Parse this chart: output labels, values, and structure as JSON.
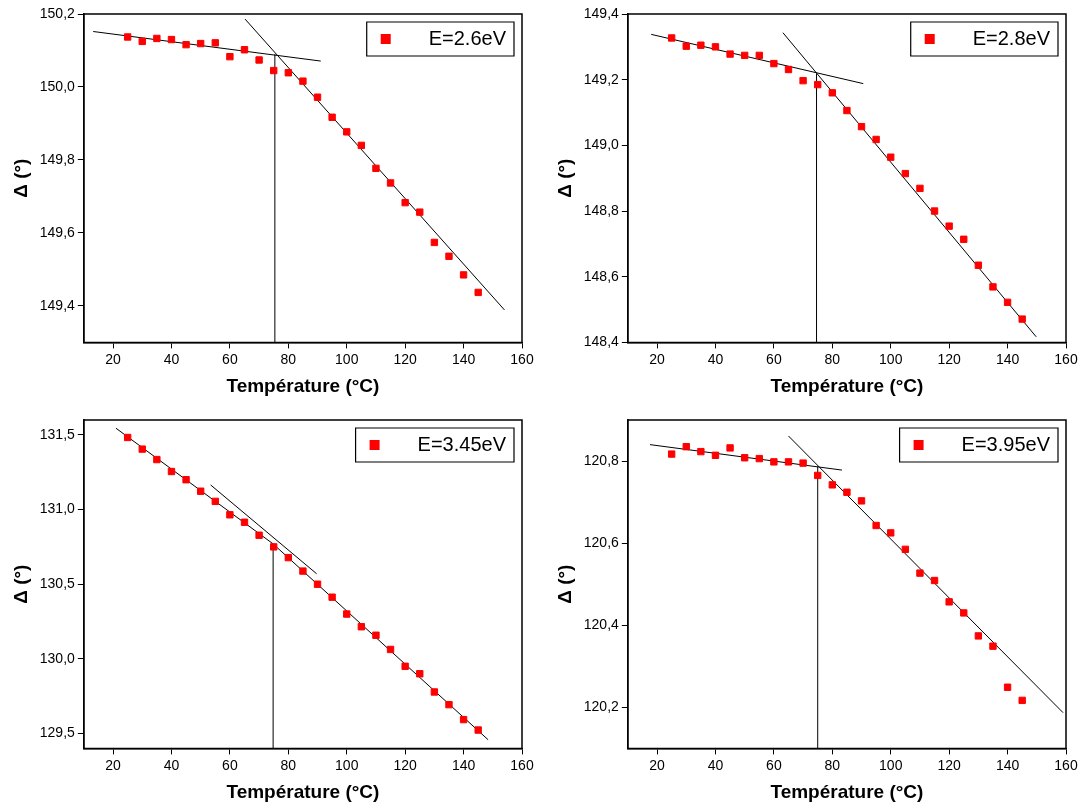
{
  "chart_data": [
    {
      "type": "scatter",
      "xlabel": "Température (°C)",
      "ylabel": "Δ (°)",
      "xlim": [
        10,
        160
      ],
      "ylim": [
        149.3,
        150.2
      ],
      "xticks": [
        20,
        40,
        60,
        80,
        100,
        120,
        140,
        160
      ],
      "yticks": [
        {
          "value": 149.4,
          "label": "149,4"
        },
        {
          "value": 149.6,
          "label": "149,6"
        },
        {
          "value": 149.8,
          "label": "149,8"
        },
        {
          "value": 150.0,
          "label": "150,0"
        },
        {
          "value": 150.2,
          "label": "150,2"
        }
      ],
      "grid": false,
      "legend": "top right",
      "marker": "square",
      "x": [
        25,
        30,
        35,
        40,
        45,
        50,
        55,
        60,
        65,
        70,
        75,
        80,
        85,
        90,
        95,
        100,
        105,
        110,
        115,
        120,
        125,
        130,
        135,
        140,
        145
      ],
      "series": [
        {
          "name": "E=2.6eV",
          "color": "#ff0000",
          "values": [
            150.137,
            150.125,
            150.133,
            150.13,
            150.116,
            150.119,
            150.121,
            150.083,
            150.102,
            150.074,
            150.045,
            150.039,
            150.016,
            149.972,
            149.917,
            149.877,
            149.84,
            149.777,
            149.737,
            149.683,
            149.657,
            149.574,
            149.536,
            149.485,
            149.437
          ]
        },
        {
          "type": "line",
          "color": "#000000",
          "marker": "none",
          "x": [
            13.2,
            91.1
          ],
          "values": [
            150.152,
            150.071
          ]
        },
        {
          "type": "line",
          "color": "#000000",
          "marker": "none",
          "x": [
            65.2,
            154
          ],
          "values": [
            150.186,
            149.389
          ]
        },
        {
          "type": "line",
          "color": "#000000",
          "marker": "none",
          "x": [
            75.4,
            75.4
          ],
          "values": [
            149.3,
            150.09
          ]
        }
      ]
    },
    {
      "type": "scatter",
      "xlabel": "Température (°C)",
      "ylabel": "Δ (°)",
      "xlim": [
        10,
        160
      ],
      "ylim": [
        148.4,
        149.4
      ],
      "xticks": [
        20,
        40,
        60,
        80,
        100,
        120,
        140,
        160
      ],
      "yticks": [
        {
          "value": 148.4,
          "label": "148,4"
        },
        {
          "value": 148.6,
          "label": "148,6"
        },
        {
          "value": 148.8,
          "label": "148,8"
        },
        {
          "value": 149.0,
          "label": "149,0"
        },
        {
          "value": 149.2,
          "label": "149,2"
        },
        {
          "value": 149.4,
          "label": "149,4"
        }
      ],
      "grid": false,
      "legend": "top right",
      "marker": "square",
      "x": [
        25,
        30,
        35,
        40,
        45,
        50,
        55,
        60,
        65,
        70,
        75,
        80,
        85,
        90,
        95,
        100,
        105,
        110,
        115,
        120,
        125,
        130,
        135,
        140,
        145
      ],
      "series": [
        {
          "name": "E=2.8eV",
          "color": "#ff0000",
          "values": [
            149.327,
            149.302,
            149.305,
            149.3,
            149.278,
            149.274,
            149.274,
            149.249,
            149.231,
            149.197,
            149.185,
            149.16,
            149.106,
            149.057,
            149.018,
            148.964,
            148.914,
            148.869,
            148.8,
            148.754,
            148.714,
            148.635,
            148.569,
            148.522,
            148.471
          ]
        },
        {
          "type": "line",
          "color": "#000000",
          "marker": "none",
          "x": [
            18,
            90.6
          ],
          "values": [
            149.338,
            149.188
          ]
        },
        {
          "type": "line",
          "color": "#000000",
          "marker": "none",
          "x": [
            63.1,
            149.8
          ],
          "values": [
            149.343,
            148.417
          ]
        },
        {
          "type": "line",
          "color": "#000000",
          "marker": "none",
          "x": [
            74.6,
            74.6
          ],
          "values": [
            148.4,
            149.219
          ]
        }
      ]
    },
    {
      "type": "scatter",
      "xlabel": "Température (°C)",
      "ylabel": "Δ (°)",
      "xlim": [
        10,
        160
      ],
      "ylim": [
        129.4,
        131.6
      ],
      "xticks": [
        20,
        40,
        60,
        80,
        100,
        120,
        140,
        160
      ],
      "yticks": [
        {
          "value": 129.5,
          "label": "129,5"
        },
        {
          "value": 130.0,
          "label": "130,0"
        },
        {
          "value": 130.5,
          "label": "130,5"
        },
        {
          "value": 131.0,
          "label": "131,0"
        },
        {
          "value": 131.5,
          "label": "131,5"
        }
      ],
      "grid": false,
      "legend": "top right",
      "marker": "square",
      "x": [
        25,
        30,
        35,
        40,
        45,
        50,
        55,
        60,
        65,
        70,
        75,
        80,
        85,
        90,
        95,
        100,
        105,
        110,
        115,
        120,
        125,
        130,
        135,
        140,
        145
      ],
      "series": [
        {
          "name": "E=3.45eV",
          "color": "#ff0000",
          "values": [
            131.483,
            131.405,
            131.335,
            131.255,
            131.2,
            131.123,
            131.055,
            130.965,
            130.915,
            130.828,
            130.75,
            130.678,
            130.588,
            130.5,
            130.413,
            130.3,
            130.215,
            130.158,
            130.063,
            129.95,
            129.9,
            129.778,
            129.693,
            129.593,
            129.523
          ]
        },
        {
          "type": "line",
          "color": "#000000",
          "marker": "none",
          "x": [
            21,
            74.8,
            148.4
          ],
          "values": [
            131.545,
            130.77,
            129.458
          ]
        },
        {
          "type": "line",
          "color": "#000000",
          "marker": "none",
          "x": [
            53.4,
            89.7
          ],
          "values": [
            131.165,
            130.57
          ]
        },
        {
          "type": "line",
          "color": "#000000",
          "marker": "none",
          "x": [
            74.8,
            74.8
          ],
          "values": [
            129.4,
            130.77
          ]
        }
      ]
    },
    {
      "type": "scatter",
      "xlabel": "Température (°C)",
      "ylabel": "Δ (°)",
      "xlim": [
        10,
        160
      ],
      "ylim": [
        120.1,
        120.9
      ],
      "xticks": [
        20,
        40,
        60,
        80,
        100,
        120,
        140,
        160
      ],
      "yticks": [
        {
          "value": 120.2,
          "label": "120,2"
        },
        {
          "value": 120.4,
          "label": "120,4"
        },
        {
          "value": 120.6,
          "label": "120,6"
        },
        {
          "value": 120.8,
          "label": "120,8"
        }
      ],
      "grid": false,
      "legend": "top right",
      "marker": "square",
      "x": [
        25,
        30,
        35,
        40,
        45,
        50,
        55,
        60,
        65,
        70,
        75,
        80,
        85,
        90,
        95,
        100,
        105,
        110,
        115,
        120,
        125,
        130,
        135,
        140,
        145
      ],
      "series": [
        {
          "name": "E=3.95eV",
          "color": "#ff0000",
          "values": [
            120.817,
            120.835,
            120.823,
            120.814,
            120.832,
            120.808,
            120.806,
            120.798,
            120.798,
            120.795,
            120.765,
            120.742,
            120.724,
            120.703,
            120.643,
            120.625,
            120.585,
            120.527,
            120.509,
            120.457,
            120.43,
            120.374,
            120.349,
            120.249,
            120.217
          ]
        },
        {
          "type": "line",
          "color": "#000000",
          "marker": "none",
          "x": [
            17.6,
            83.3
          ],
          "values": [
            120.84,
            120.778
          ]
        },
        {
          "type": "line",
          "color": "#000000",
          "marker": "none",
          "x": [
            65,
            159
          ],
          "values": [
            120.861,
            120.187
          ]
        },
        {
          "type": "line",
          "color": "#000000",
          "marker": "none",
          "x": [
            75,
            75
          ],
          "values": [
            120.1,
            120.787
          ]
        }
      ]
    }
  ]
}
